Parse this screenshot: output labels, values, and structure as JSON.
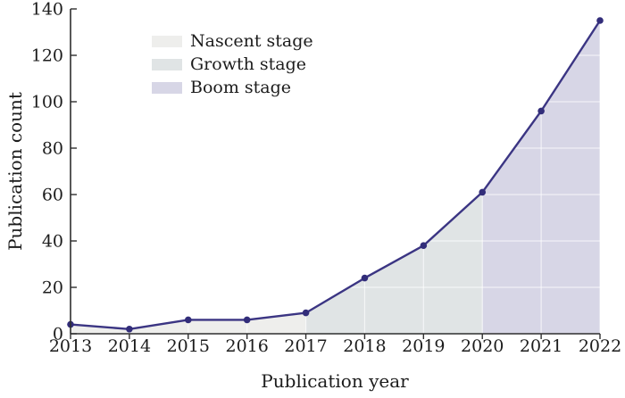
{
  "chart_data": {
    "type": "area",
    "title": "",
    "xlabel": "Publication year",
    "ylabel": "Publication count",
    "x": [
      2013,
      2014,
      2015,
      2016,
      2017,
      2018,
      2019,
      2020,
      2021,
      2022
    ],
    "series": [
      {
        "name": "Publication count",
        "values": [
          4,
          2,
          6,
          6,
          9,
          24,
          38,
          61,
          96,
          135
        ]
      }
    ],
    "ylim": [
      0,
      140
    ],
    "yticks": [
      0,
      20,
      40,
      60,
      80,
      100,
      120,
      140
    ],
    "grid": "faint white gridlines visible over shaded areas",
    "legend_position": "upper-left inside plot",
    "stages": [
      {
        "label": "Nascent stage",
        "from": 2013,
        "to": 2017,
        "color": "#eeeeec"
      },
      {
        "label": "Growth stage",
        "from": 2017,
        "to": 2020,
        "color": "#e0e4e5"
      },
      {
        "label": "Boom stage",
        "from": 2020,
        "to": 2022,
        "color": "#d7d6e6"
      }
    ],
    "colors": {
      "line": "#3b3583",
      "marker": "#322d7a",
      "axis": "#2e2e2e",
      "text": "#1c1c1c",
      "gridline": "rgba(255,255,255,0.65)"
    }
  }
}
